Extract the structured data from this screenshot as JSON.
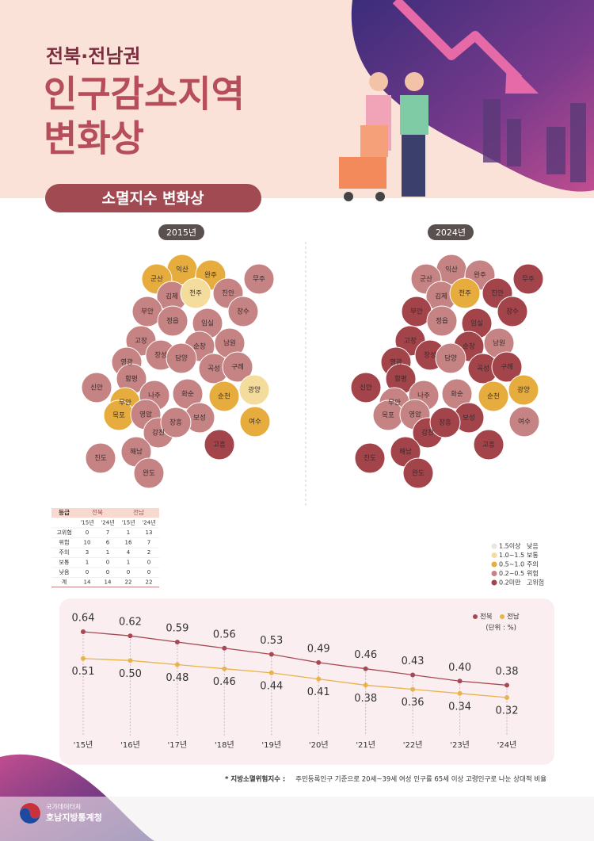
{
  "header": {
    "subtitle": "전북·전남권",
    "title_line1": "인구감소지역",
    "title_line2": "변화상",
    "section": "소멸지수 변화상"
  },
  "maps": [
    {
      "label": "2015년",
      "regions": [
        {
          "name": "익산",
          "color": "#e6ad3e"
        },
        {
          "name": "군산",
          "color": "#e6ad3e"
        },
        {
          "name": "완주",
          "color": "#e6ad3e"
        },
        {
          "name": "무주",
          "color": "#c58384"
        },
        {
          "name": "김제",
          "color": "#c58384"
        },
        {
          "name": "전주",
          "color": "#f4dc9c"
        },
        {
          "name": "진안",
          "color": "#c58384"
        },
        {
          "name": "부안",
          "color": "#c58384"
        },
        {
          "name": "정읍",
          "color": "#c58384"
        },
        {
          "name": "임실",
          "color": "#c58384"
        },
        {
          "name": "장수",
          "color": "#c58384"
        },
        {
          "name": "고창",
          "color": "#c58384"
        },
        {
          "name": "순창",
          "color": "#c58384"
        },
        {
          "name": "남원",
          "color": "#c58384"
        },
        {
          "name": "장성",
          "color": "#c58384"
        },
        {
          "name": "담양",
          "color": "#c58384"
        },
        {
          "name": "영광",
          "color": "#c58384"
        },
        {
          "name": "곡성",
          "color": "#c58384"
        },
        {
          "name": "구례",
          "color": "#c58384"
        },
        {
          "name": "함평",
          "color": "#c58384"
        },
        {
          "name": "신안",
          "color": "#c58384"
        },
        {
          "name": "무안",
          "color": "#e6ad3e"
        },
        {
          "name": "나주",
          "color": "#c58384"
        },
        {
          "name": "화순",
          "color": "#c58384"
        },
        {
          "name": "순천",
          "color": "#e6ad3e"
        },
        {
          "name": "광양",
          "color": "#f4dc9c"
        },
        {
          "name": "목포",
          "color": "#e6ad3e"
        },
        {
          "name": "영암",
          "color": "#c58384"
        },
        {
          "name": "보성",
          "color": "#c58384"
        },
        {
          "name": "여수",
          "color": "#e6ad3e"
        },
        {
          "name": "강진",
          "color": "#c58384"
        },
        {
          "name": "장흥",
          "color": "#c58384"
        },
        {
          "name": "고흥",
          "color": "#a3434a"
        },
        {
          "name": "해남",
          "color": "#c58384"
        },
        {
          "name": "진도",
          "color": "#c58384"
        },
        {
          "name": "완도",
          "color": "#c58384"
        }
      ]
    },
    {
      "label": "2024년",
      "regions": [
        {
          "name": "익산",
          "color": "#c58384"
        },
        {
          "name": "군산",
          "color": "#c58384"
        },
        {
          "name": "완주",
          "color": "#c58384"
        },
        {
          "name": "무주",
          "color": "#a3434a"
        },
        {
          "name": "김제",
          "color": "#c58384"
        },
        {
          "name": "전주",
          "color": "#e6ad3e"
        },
        {
          "name": "진안",
          "color": "#a3434a"
        },
        {
          "name": "부안",
          "color": "#a3434a"
        },
        {
          "name": "정읍",
          "color": "#c58384"
        },
        {
          "name": "임실",
          "color": "#a3434a"
        },
        {
          "name": "장수",
          "color": "#a3434a"
        },
        {
          "name": "고창",
          "color": "#a3434a"
        },
        {
          "name": "순창",
          "color": "#a3434a"
        },
        {
          "name": "남원",
          "color": "#c58384"
        },
        {
          "name": "장성",
          "color": "#a3434a"
        },
        {
          "name": "담양",
          "color": "#c58384"
        },
        {
          "name": "영광",
          "color": "#a3434a"
        },
        {
          "name": "곡성",
          "color": "#a3434a"
        },
        {
          "name": "구례",
          "color": "#a3434a"
        },
        {
          "name": "함평",
          "color": "#a3434a"
        },
        {
          "name": "신안",
          "color": "#a3434a"
        },
        {
          "name": "무안",
          "color": "#c58384"
        },
        {
          "name": "나주",
          "color": "#c58384"
        },
        {
          "name": "화순",
          "color": "#c58384"
        },
        {
          "name": "순천",
          "color": "#e6ad3e"
        },
        {
          "name": "광양",
          "color": "#e6ad3e"
        },
        {
          "name": "목포",
          "color": "#c58384"
        },
        {
          "name": "영암",
          "color": "#c58384"
        },
        {
          "name": "보성",
          "color": "#a3434a"
        },
        {
          "name": "여수",
          "color": "#c58384"
        },
        {
          "name": "강진",
          "color": "#a3434a"
        },
        {
          "name": "장흥",
          "color": "#a3434a"
        },
        {
          "name": "고흥",
          "color": "#a3434a"
        },
        {
          "name": "해남",
          "color": "#a3434a"
        },
        {
          "name": "진도",
          "color": "#a3434a"
        },
        {
          "name": "완도",
          "color": "#a3434a"
        }
      ]
    }
  ],
  "table": {
    "header": [
      "등급",
      "전북",
      "전남"
    ],
    "subheader": [
      "'15년",
      "'24년",
      "'15년",
      "'24년"
    ],
    "rows": [
      [
        "고위험",
        "0",
        "7",
        "1",
        "13"
      ],
      [
        "위험",
        "10",
        "6",
        "16",
        "7"
      ],
      [
        "주의",
        "3",
        "1",
        "4",
        "2"
      ],
      [
        "보통",
        "1",
        "0",
        "1",
        "0"
      ],
      [
        "낮음",
        "0",
        "0",
        "0",
        "0"
      ],
      [
        "계",
        "14",
        "14",
        "22",
        "22"
      ]
    ]
  },
  "map_legend": [
    {
      "range": "1.5이상",
      "grade": "낮음",
      "color": "#e9e5e2"
    },
    {
      "range": "1.0~1.5",
      "grade": "보통",
      "color": "#f4dc9c"
    },
    {
      "range": "0.5~1.0",
      "grade": "주의",
      "color": "#e6ad3e"
    },
    {
      "range": "0.2~0.5",
      "grade": "위험",
      "color": "#c58384"
    },
    {
      "range": "0.2미만",
      "grade": "고위험",
      "color": "#a3434a"
    }
  ],
  "chart_data": {
    "type": "line",
    "unit": "(단위 : %)",
    "categories": [
      "'15년",
      "'16년",
      "'17년",
      "'18년",
      "'19년",
      "'20년",
      "'21년",
      "'22년",
      "'23년",
      "'24년"
    ],
    "series": [
      {
        "name": "전북",
        "color": "#a54a55",
        "values": [
          0.64,
          0.62,
          0.59,
          0.56,
          0.53,
          0.49,
          0.46,
          0.43,
          0.4,
          0.38
        ],
        "value_labels": [
          "0.64",
          "0.62",
          "0.59",
          "0.56",
          "0.53",
          "0.49",
          "0.46",
          "0.43",
          "0.40",
          "0.38"
        ]
      },
      {
        "name": "전남",
        "color": "#e8b34a",
        "values": [
          0.51,
          0.5,
          0.48,
          0.46,
          0.44,
          0.41,
          0.38,
          0.36,
          0.34,
          0.32
        ],
        "value_labels": [
          "0.51",
          "0.50",
          "0.48",
          "0.46",
          "0.44",
          "0.41",
          "0.38",
          "0.36",
          "0.34",
          "0.32"
        ]
      }
    ]
  },
  "footnote": {
    "term": "* 지방소멸위험지수 :",
    "text": "주민등록인구 기준으로 20세~39세 여성 인구를 65세 이상 고령인구로 나눈 상대적 비율"
  },
  "footer": {
    "org_top": "국가데이터처",
    "org": "호남지방통계청"
  }
}
